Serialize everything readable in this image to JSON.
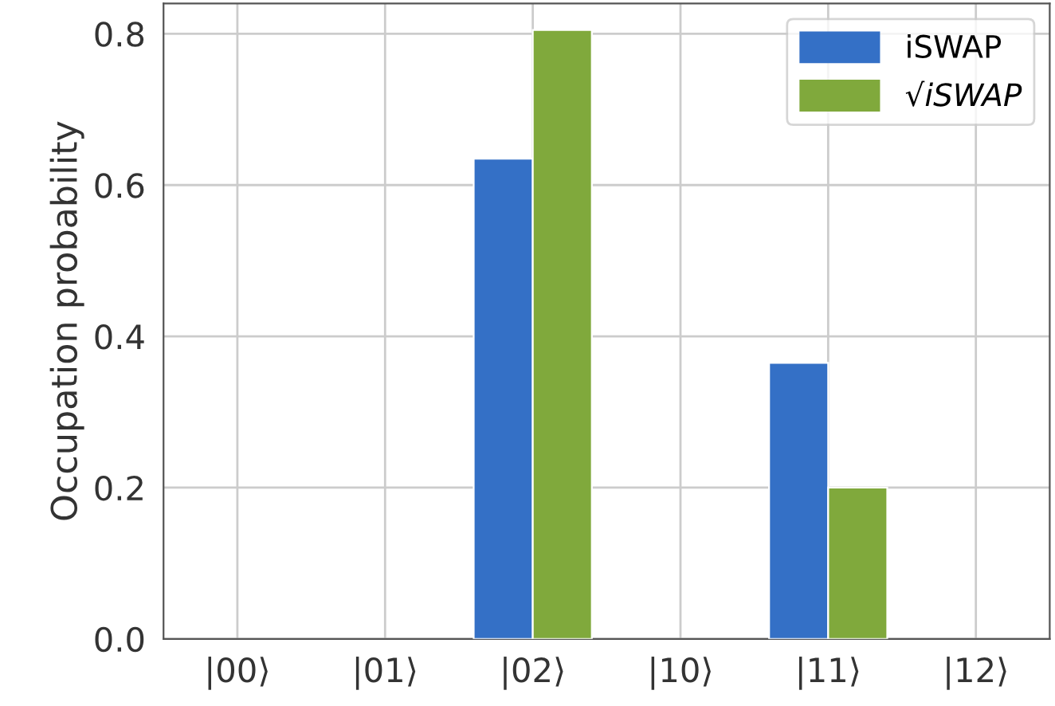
{
  "chart_data": {
    "type": "bar",
    "ylabel": "Occupation probability",
    "categories": [
      "|00⟩",
      "|01⟩",
      "|02⟩",
      "|10⟩",
      "|11⟩",
      "|12⟩"
    ],
    "series": [
      {
        "name": "iSWAP",
        "color": "#3470c6",
        "values": [
          0,
          0,
          0.635,
          0,
          0.365,
          0
        ]
      },
      {
        "name": "√iSWAP",
        "color": "#80a93c",
        "values": [
          0,
          0,
          0.805,
          0,
          0.2,
          0
        ]
      }
    ],
    "ylim": [
      0,
      0.84
    ],
    "yticks": [
      {
        "value": 0,
        "label": "0.0"
      },
      {
        "value": 0.2,
        "label": "0.2"
      },
      {
        "value": 0.4,
        "label": "0.4"
      },
      {
        "value": 0.6,
        "label": "0.6"
      },
      {
        "value": 0.8,
        "label": "0.8"
      }
    ],
    "grid": true,
    "legend": "top right"
  }
}
